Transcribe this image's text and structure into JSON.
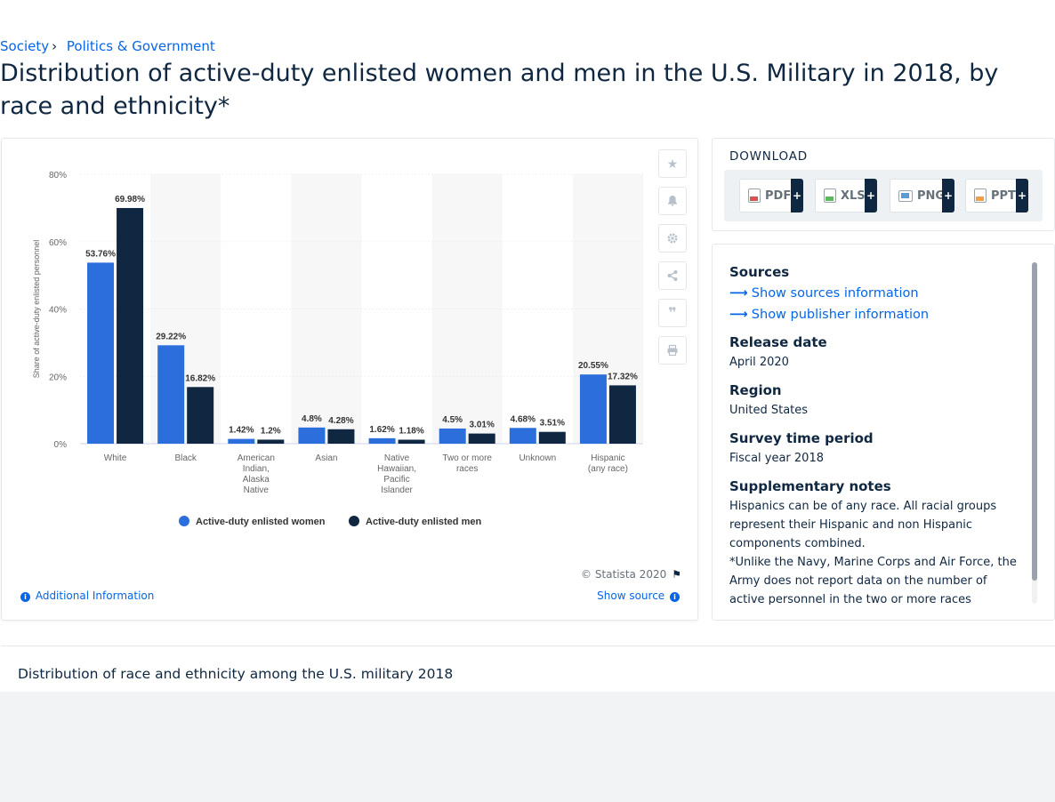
{
  "breadcrumb": {
    "item1": "Society",
    "item2": "Politics & Government"
  },
  "title": "Distribution of active-duty enlisted women and men in the U.S. Military in 2018, by race and ethnicity*",
  "chart_data": {
    "type": "bar",
    "categories": [
      [
        "White"
      ],
      [
        "Black"
      ],
      [
        "American",
        "Indian,",
        "Alaska",
        "Native"
      ],
      [
        "Asian"
      ],
      [
        "Native",
        "Hawaiian,",
        "Pacific",
        "Islander"
      ],
      [
        "Two or more",
        "races"
      ],
      [
        "Unknown"
      ],
      [
        "Hispanic",
        "(any race)"
      ]
    ],
    "series": [
      {
        "name": "Active-duty enlisted women",
        "values": [
          53.76,
          29.22,
          1.42,
          4.8,
          1.62,
          4.5,
          4.68,
          20.55
        ],
        "labels": [
          "53.76%",
          "29.22%",
          "1.42%",
          "4.8%",
          "1.62%",
          "4.5%",
          "4.68%",
          "20.55%"
        ],
        "color": "#2c6fdc"
      },
      {
        "name": "Active-duty enlisted men",
        "values": [
          69.98,
          16.82,
          1.2,
          4.28,
          1.18,
          3.01,
          3.51,
          17.32
        ],
        "labels": [
          "69.98%",
          "16.82%",
          "1.2%",
          "4.28%",
          "1.18%",
          "3.01%",
          "3.51%",
          "17.32%"
        ],
        "color": "#0f2741"
      }
    ],
    "ylabel": "Share of active-duty enlisted personnel",
    "yticks": [
      "0%",
      "20%",
      "40%",
      "60%",
      "80%"
    ],
    "ylim": [
      0,
      80
    ],
    "grid": true,
    "legend": "bottom"
  },
  "copyright": "© Statista 2020",
  "additional_info": "Additional Information",
  "show_source": "Show source",
  "download": {
    "title": "DOWNLOAD",
    "buttons": [
      {
        "label": "PDF",
        "color": "#d9534f"
      },
      {
        "label": "XLS",
        "color": "#5cb85c"
      },
      {
        "label": "PNG",
        "color": "#5b9bd5"
      },
      {
        "label": "PPT",
        "color": "#f0a044"
      }
    ]
  },
  "sources": {
    "heading": "Sources",
    "link1": "Show sources information",
    "link2": "Show publisher information",
    "release_h": "Release date",
    "release_v": "April 2020",
    "region_h": "Region",
    "region_v": "United States",
    "survey_h": "Survey time period",
    "survey_v": "Fiscal year 2018",
    "notes_h": "Supplementary notes",
    "notes_v1": "Hispanics can be of any race. All racial groups represent their Hispanic and non Hispanic components combined.",
    "notes_v2": "*Unlike the Navy, Marine Corps and Air Force, the Army does not report data on the number of active personnel in the two or more races category."
  },
  "related_title": "Distribution of race and ethnicity among the U.S. military 2018"
}
